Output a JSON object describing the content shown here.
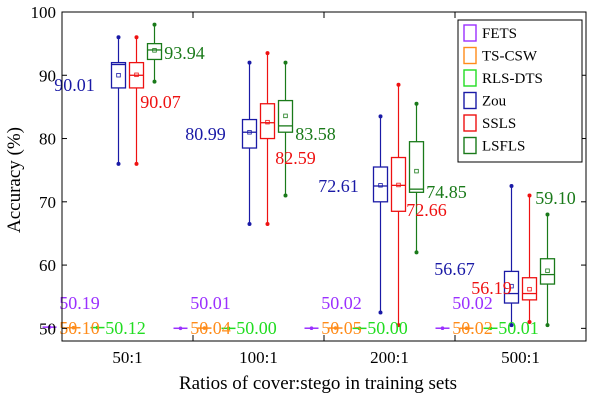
{
  "chart_data": {
    "type": "box",
    "xlabel": "Ratios of cover:stego in training sets",
    "ylabel": "Accuracy (%)",
    "categories": [
      "50:1",
      "100:1",
      "200:1",
      "500:1"
    ],
    "ylim": [
      48,
      100
    ],
    "yticks": [
      50,
      60,
      70,
      80,
      90,
      100
    ],
    "legend_position": "top-right",
    "series": [
      {
        "name": "FETS",
        "color": "#9b30ff",
        "boxes": [
          {
            "min": 50.19,
            "q1": 50.19,
            "median": 50.19,
            "q3": 50.19,
            "max": 50.19,
            "mean": 50.19
          },
          {
            "min": 50.01,
            "q1": 50.01,
            "median": 50.01,
            "q3": 50.01,
            "max": 50.01,
            "mean": 50.01
          },
          {
            "min": 50.02,
            "q1": 50.02,
            "median": 50.02,
            "q3": 50.02,
            "max": 50.02,
            "mean": 50.02
          },
          {
            "min": 50.02,
            "q1": 50.02,
            "median": 50.02,
            "q3": 50.02,
            "max": 50.02,
            "mean": 50.02
          }
        ]
      },
      {
        "name": "TS-CSW",
        "color": "#ff8c1a",
        "boxes": [
          {
            "min": 50.1,
            "q1": 50.1,
            "median": 50.1,
            "q3": 50.1,
            "max": 50.1,
            "mean": 50.1
          },
          {
            "min": 50.04,
            "q1": 50.04,
            "median": 50.04,
            "q3": 50.04,
            "max": 50.04,
            "mean": 50.04
          },
          {
            "min": 50.05,
            "q1": 50.05,
            "median": 50.05,
            "q3": 50.05,
            "max": 50.05,
            "mean": 50.05
          },
          {
            "min": 50.02,
            "q1": 50.02,
            "median": 50.02,
            "q3": 50.02,
            "max": 50.02,
            "mean": 50.02
          }
        ]
      },
      {
        "name": "RLS-DTS",
        "color": "#22dd22",
        "boxes": [
          {
            "min": 50.12,
            "q1": 50.12,
            "median": 50.12,
            "q3": 50.12,
            "max": 50.12,
            "mean": 50.12
          },
          {
            "min": 50.0,
            "q1": 50.0,
            "median": 50.0,
            "q3": 50.0,
            "max": 50.0,
            "mean": 50.0
          },
          {
            "min": 50.0,
            "q1": 50.0,
            "median": 50.0,
            "q3": 50.0,
            "max": 50.0,
            "mean": 50.0
          },
          {
            "min": 50.01,
            "q1": 50.01,
            "median": 50.01,
            "q3": 50.01,
            "max": 50.01,
            "mean": 50.01
          }
        ]
      },
      {
        "name": "Zou",
        "color": "#1a1aa6",
        "boxes": [
          {
            "min": 76,
            "q1": 88,
            "median": 91.7,
            "q3": 92,
            "max": 96,
            "mean": 90.01
          },
          {
            "min": 66.5,
            "q1": 78.5,
            "median": 81,
            "q3": 83,
            "max": 92,
            "mean": 80.99
          },
          {
            "min": 52.5,
            "q1": 70,
            "median": 72.5,
            "q3": 75.5,
            "max": 83.5,
            "mean": 72.61
          },
          {
            "min": 50.5,
            "q1": 54,
            "median": 55.5,
            "q3": 59,
            "max": 72.5,
            "mean": 56.67
          }
        ]
      },
      {
        "name": "SSLS",
        "color": "#ee1111",
        "boxes": [
          {
            "min": 76,
            "q1": 88,
            "median": 90,
            "q3": 92,
            "max": 96,
            "mean": 90.07
          },
          {
            "min": 66.5,
            "q1": 80,
            "median": 82.5,
            "q3": 85.5,
            "max": 93.5,
            "mean": 82.59
          },
          {
            "min": 50.5,
            "q1": 68.5,
            "median": 72.6,
            "q3": 77,
            "max": 88.5,
            "mean": 72.66
          },
          {
            "min": 51,
            "q1": 54.5,
            "median": 55.5,
            "q3": 58,
            "max": 71,
            "mean": 56.19
          }
        ]
      },
      {
        "name": "LSFLS",
        "color": "#1a7a1a",
        "boxes": [
          {
            "min": 89,
            "q1": 92.5,
            "median": 94,
            "q3": 95,
            "max": 98,
            "mean": 93.94
          },
          {
            "min": 71,
            "q1": 81,
            "median": 82,
            "q3": 86,
            "max": 92,
            "mean": 83.58
          },
          {
            "min": 62,
            "q1": 71.5,
            "median": 72,
            "q3": 79.5,
            "max": 85.5,
            "mean": 74.85
          },
          {
            "min": 50.5,
            "q1": 57,
            "median": 58.5,
            "q3": 61,
            "max": 68,
            "mean": 59.1
          }
        ]
      }
    ],
    "annotations": [
      {
        "text": "90.01",
        "category": 0,
        "series": 3
      },
      {
        "text": "90.07",
        "category": 0,
        "series": 4
      },
      {
        "text": "93.94",
        "category": 0,
        "series": 5
      },
      {
        "text": "80.99",
        "category": 1,
        "series": 3
      },
      {
        "text": "82.59",
        "category": 1,
        "series": 4
      },
      {
        "text": "83.58",
        "category": 1,
        "series": 5
      },
      {
        "text": "72.61",
        "category": 2,
        "series": 3
      },
      {
        "text": "72.66",
        "category": 2,
        "series": 4
      },
      {
        "text": "74.85",
        "category": 2,
        "series": 5
      },
      {
        "text": "56.67",
        "category": 3,
        "series": 3
      },
      {
        "text": "56.19",
        "category": 3,
        "series": 4
      },
      {
        "text": "59.10",
        "category": 3,
        "series": 5
      },
      {
        "text": "50.19",
        "category": 0,
        "series": 0
      },
      {
        "text": "50.10",
        "category": 0,
        "series": 1
      },
      {
        "text": "50.12",
        "category": 0,
        "series": 2
      },
      {
        "text": "50.01",
        "category": 1,
        "series": 0
      },
      {
        "text": "50.04",
        "category": 1,
        "series": 1
      },
      {
        "text": "50.00",
        "category": 1,
        "series": 2
      },
      {
        "text": "50.02",
        "category": 2,
        "series": 0
      },
      {
        "text": "50.05",
        "category": 2,
        "series": 1
      },
      {
        "text": "50.00",
        "category": 2,
        "series": 2
      },
      {
        "text": "50.02",
        "category": 3,
        "series": 0
      },
      {
        "text": "50.02",
        "category": 3,
        "series": 1
      },
      {
        "text": "50.01",
        "category": 3,
        "series": 2
      }
    ]
  }
}
